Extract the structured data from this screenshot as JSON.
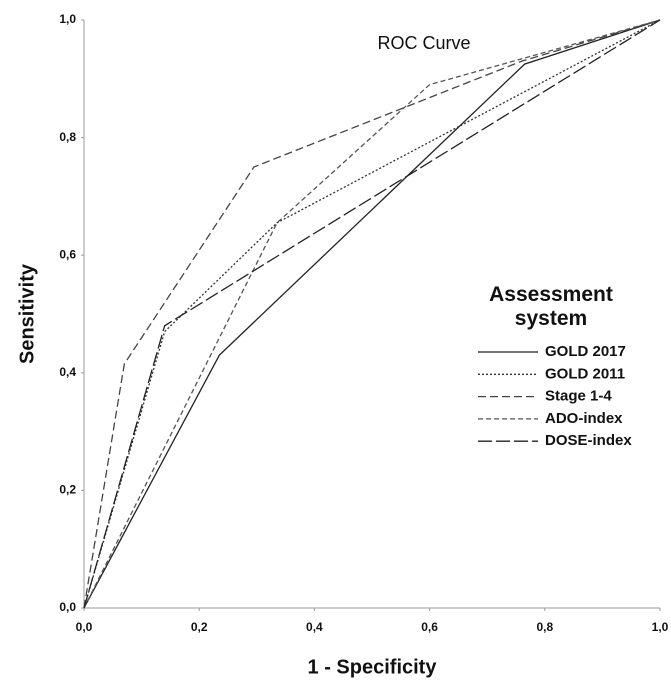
{
  "chart_data": {
    "type": "line",
    "title": "ROC Curve",
    "x_label": "1 - Specificity",
    "y_label": "Sensitivity",
    "legend_title": "Assessment system",
    "xlim": [
      0,
      1
    ],
    "ylim": [
      0,
      1
    ],
    "xticks": [
      {
        "value": 0,
        "label": "0,0"
      },
      {
        "value": 0.2,
        "label": "0,2"
      },
      {
        "value": 0.4,
        "label": "0,4"
      },
      {
        "value": 0.6,
        "label": "0,6"
      },
      {
        "value": 0.8,
        "label": "0,8"
      },
      {
        "value": 1,
        "label": "1,0"
      }
    ],
    "yticks": [
      {
        "value": 0,
        "label": "0,0"
      },
      {
        "value": 0.2,
        "label": "0,2"
      },
      {
        "value": 0.4,
        "label": "0,4"
      },
      {
        "value": 0.6,
        "label": "0,6"
      },
      {
        "value": 0.8,
        "label": "0,8"
      },
      {
        "value": 1,
        "label": "1,0"
      }
    ],
    "series": [
      {
        "name": "GOLD 2017",
        "color": "#222222",
        "dash": "none",
        "x": [
          0,
          0.235,
          0.765,
          1
        ],
        "values": [
          0,
          0.43,
          0.925,
          1
        ]
      },
      {
        "name": "GOLD 2011",
        "color": "#333333",
        "dash": "2,2",
        "x": [
          0,
          0.14,
          0.335,
          1
        ],
        "values": [
          0,
          0.47,
          0.655,
          1
        ]
      },
      {
        "name": "Stage 1-4",
        "color": "#444444",
        "dash": "8,4",
        "x": [
          0,
          0.07,
          0.295,
          0.76,
          1
        ],
        "values": [
          0,
          0.415,
          0.75,
          0.93,
          1
        ]
      },
      {
        "name": "ADO-index",
        "color": "#555555",
        "dash": "5,3",
        "x": [
          0,
          0.335,
          0.6,
          1
        ],
        "values": [
          0,
          0.655,
          0.89,
          1
        ]
      },
      {
        "name": "DOSE-index",
        "color": "#222222",
        "dash": "14,4",
        "x": [
          0,
          0.14,
          1
        ],
        "values": [
          0,
          0.48,
          1
        ]
      }
    ]
  }
}
